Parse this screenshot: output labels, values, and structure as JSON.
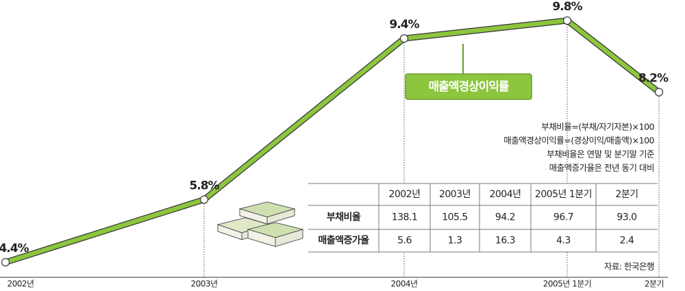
{
  "chart_data": {
    "type": "line",
    "categories": [
      "2002년",
      "2003년",
      "2004년",
      "2005년 1분기",
      "2분기"
    ],
    "series": [
      {
        "name": "매출액경상이익률",
        "color": "#8cc63f",
        "values": [
          4.4,
          5.8,
          9.4,
          9.8,
          8.2
        ],
        "value_labels": [
          "4.4%",
          "5.8%",
          "9.4%",
          "9.8%",
          "8.2%"
        ]
      }
    ],
    "notes": [
      "부채비율=(부채/자기자본)×100",
      "매출액경상이익률=(경상이익/매출액)×100",
      "부채비율은 연말 및 분기말 기준",
      "매출액증가율은 전년 동기 대비"
    ],
    "table": {
      "header": [
        "2002년",
        "2003년",
        "2004년",
        "2005년 1분기",
        "2분기"
      ],
      "rows": [
        [
          "부채비율",
          "138.1",
          "105.5",
          "94.2",
          "96.7",
          "93.0"
        ],
        [
          "매출액증가율",
          "5.6",
          "1.3",
          "16.3",
          "4.3",
          "2.4"
        ]
      ]
    },
    "source": "자료: 한국은행"
  }
}
